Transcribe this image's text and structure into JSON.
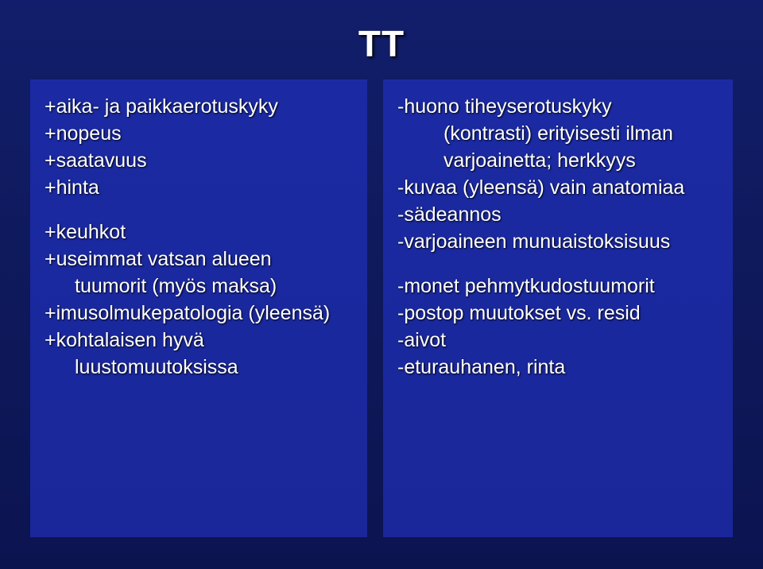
{
  "title": "TT",
  "left": {
    "group1": [
      "+aika- ja paikkaerotuskyky",
      "+nopeus",
      "+saatavuus",
      "+hinta"
    ],
    "group2": [
      "+keuhkot",
      "+useimmat vatsan alueen",
      "tuumorit (myös maksa)",
      "+imusolmukepatologia (yleensä)",
      "+kohtalaisen hyvä",
      "luustomuutoksissa"
    ]
  },
  "right": {
    "group1": [
      "-huono tiheyserotuskyky",
      "(kontrasti) erityisesti ilman",
      "varjoainetta; herkkyys",
      "-kuvaa (yleensä) vain anatomiaa",
      "-sädeannos",
      "-varjoaineen munuaistoksisuus"
    ],
    "group2": [
      "-monet pehmytkudostuumorit",
      "-postop muutokset vs. resid",
      "-aivot",
      "-eturauhanen, rinta"
    ]
  },
  "colors": {
    "slide_bg_top": "#121e6b",
    "slide_bg_bottom": "#0c1450",
    "panel_bg": "#1b2aa3",
    "text": "#ffffff"
  },
  "fontsize": {
    "title": 46,
    "body": 25
  }
}
